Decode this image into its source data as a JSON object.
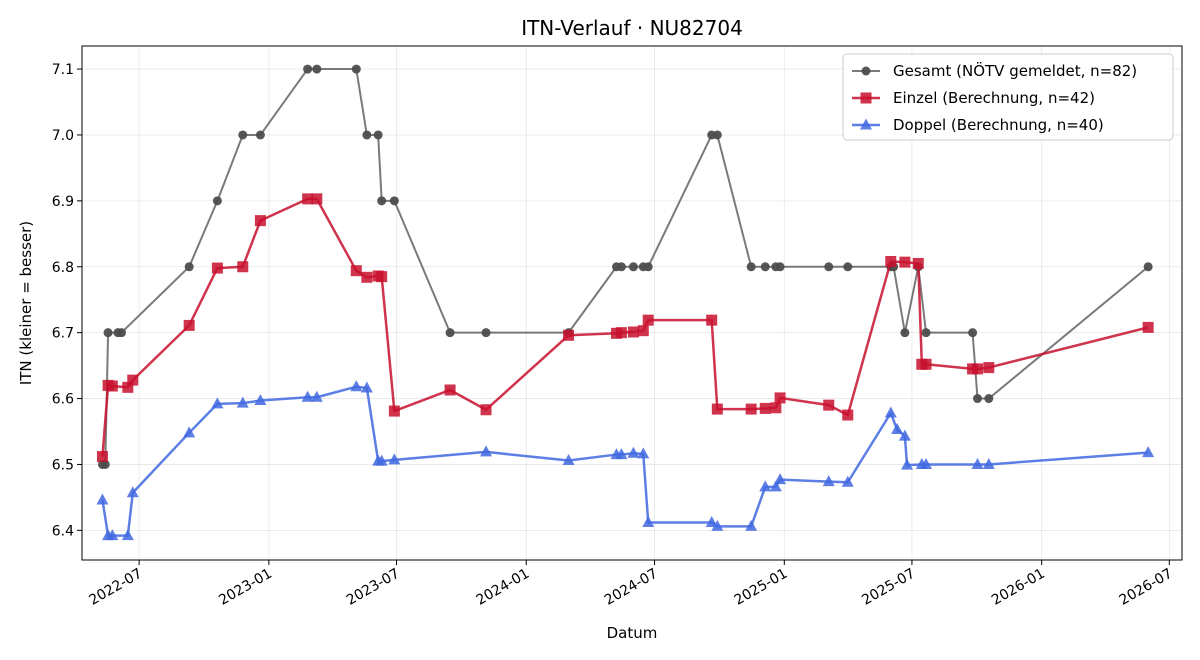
{
  "chart_data": {
    "type": "line",
    "title": "ITN-Verlauf · NU82704",
    "xlabel": "Datum",
    "ylabel": "ITN  (kleiner = besser)",
    "xlim": [
      "2022-04-11",
      "2026-07-19"
    ],
    "ylim": [
      6.355,
      7.135
    ],
    "grid": true,
    "legend_position": "top-right",
    "x_ticks": [
      {
        "date": "2022-07-01",
        "label": "2022-07"
      },
      {
        "date": "2023-01-01",
        "label": "2023-01"
      },
      {
        "date": "2023-07-01",
        "label": "2023-07"
      },
      {
        "date": "2024-01-01",
        "label": "2024-01"
      },
      {
        "date": "2024-07-01",
        "label": "2024-07"
      },
      {
        "date": "2025-01-01",
        "label": "2025-01"
      },
      {
        "date": "2025-07-01",
        "label": "2025-07"
      },
      {
        "date": "2026-01-01",
        "label": "2026-01"
      },
      {
        "date": "2026-07-01",
        "label": "2026-07"
      }
    ],
    "y_ticks": [
      6.4,
      6.5,
      6.6,
      6.7,
      6.8,
      6.9,
      7.0,
      7.1
    ],
    "y_tick_labels": [
      "6.4",
      "6.5",
      "6.6",
      "6.7",
      "6.8",
      "6.9",
      "7.0",
      "7.1"
    ],
    "series": [
      {
        "name": "Gesamt (NÖTV gemeldet, n=82)",
        "color": "#4d4d4d",
        "marker": "circle",
        "points": [
          [
            "2022-05-10",
            6.5
          ],
          [
            "2022-05-14",
            6.5
          ],
          [
            "2022-05-18",
            6.7
          ],
          [
            "2022-06-01",
            6.7
          ],
          [
            "2022-06-06",
            6.7
          ],
          [
            "2022-09-10",
            6.8
          ],
          [
            "2022-10-20",
            6.9
          ],
          [
            "2022-11-25",
            7.0
          ],
          [
            "2022-12-20",
            7.0
          ],
          [
            "2023-02-25",
            7.1
          ],
          [
            "2023-03-10",
            7.1
          ],
          [
            "2023-05-05",
            7.1
          ],
          [
            "2023-05-20",
            7.0
          ],
          [
            "2023-06-05",
            7.0
          ],
          [
            "2023-06-10",
            6.9
          ],
          [
            "2023-06-28",
            6.9
          ],
          [
            "2023-09-15",
            6.7
          ],
          [
            "2023-11-05",
            6.7
          ],
          [
            "2024-03-01",
            6.7
          ],
          [
            "2024-05-08",
            6.8
          ],
          [
            "2024-05-15",
            6.8
          ],
          [
            "2024-06-01",
            6.8
          ],
          [
            "2024-06-15",
            6.8
          ],
          [
            "2024-06-22",
            6.8
          ],
          [
            "2024-09-20",
            7.0
          ],
          [
            "2024-09-28",
            7.0
          ],
          [
            "2024-11-15",
            6.8
          ],
          [
            "2024-12-05",
            6.8
          ],
          [
            "2024-12-20",
            6.8
          ],
          [
            "2024-12-26",
            6.8
          ],
          [
            "2025-03-05",
            6.8
          ],
          [
            "2025-04-01",
            6.8
          ],
          [
            "2025-06-01",
            6.8
          ],
          [
            "2025-06-05",
            6.8
          ],
          [
            "2025-06-21",
            6.7
          ],
          [
            "2025-07-10",
            6.8
          ],
          [
            "2025-07-21",
            6.7
          ],
          [
            "2025-09-25",
            6.7
          ],
          [
            "2025-10-02",
            6.6
          ],
          [
            "2025-10-18",
            6.6
          ],
          [
            "2026-06-01",
            6.8
          ]
        ]
      },
      {
        "name": "Einzel (Berechnung, n=42)",
        "color": "#c8102e",
        "marker": "square",
        "points": [
          [
            "2022-05-10",
            6.512
          ],
          [
            "2022-05-18",
            6.62
          ],
          [
            "2022-05-24",
            6.619
          ],
          [
            "2022-06-15",
            6.617
          ],
          [
            "2022-06-22",
            6.628
          ],
          [
            "2022-09-10",
            6.711
          ],
          [
            "2022-10-20",
            6.798
          ],
          [
            "2022-11-25",
            6.8
          ],
          [
            "2022-12-20",
            6.87
          ],
          [
            "2023-02-25",
            6.903
          ],
          [
            "2023-03-10",
            6.903
          ],
          [
            "2023-05-05",
            6.794
          ],
          [
            "2023-05-20",
            6.784
          ],
          [
            "2023-06-05",
            6.786
          ],
          [
            "2023-06-10",
            6.785
          ],
          [
            "2023-06-28",
            6.581
          ],
          [
            "2023-09-15",
            6.613
          ],
          [
            "2023-11-05",
            6.583
          ],
          [
            "2024-03-01",
            6.696
          ],
          [
            "2024-05-08",
            6.699
          ],
          [
            "2024-05-15",
            6.7
          ],
          [
            "2024-06-01",
            6.701
          ],
          [
            "2024-06-15",
            6.703
          ],
          [
            "2024-06-22",
            6.719
          ],
          [
            "2024-09-20",
            6.719
          ],
          [
            "2024-09-28",
            6.584
          ],
          [
            "2024-11-15",
            6.584
          ],
          [
            "2024-12-05",
            6.585
          ],
          [
            "2024-12-20",
            6.586
          ],
          [
            "2024-12-26",
            6.601
          ],
          [
            "2025-03-05",
            6.59
          ],
          [
            "2025-04-01",
            6.575
          ],
          [
            "2025-06-01",
            6.808
          ],
          [
            "2025-06-21",
            6.807
          ],
          [
            "2025-07-10",
            6.805
          ],
          [
            "2025-07-15",
            6.652
          ],
          [
            "2025-07-21",
            6.652
          ],
          [
            "2025-09-25",
            6.645
          ],
          [
            "2025-10-02",
            6.645
          ],
          [
            "2025-10-18",
            6.647
          ],
          [
            "2026-06-01",
            6.708
          ]
        ]
      },
      {
        "name": "Doppel (Berechnung, n=40)",
        "color": "#4169e1",
        "marker": "triangle",
        "points": [
          [
            "2022-05-10",
            6.446
          ],
          [
            "2022-05-18",
            6.392
          ],
          [
            "2022-05-24",
            6.392
          ],
          [
            "2022-06-15",
            6.392
          ],
          [
            "2022-06-22",
            6.457
          ],
          [
            "2022-09-10",
            6.548
          ],
          [
            "2022-10-20",
            6.592
          ],
          [
            "2022-11-25",
            6.593
          ],
          [
            "2022-12-20",
            6.597
          ],
          [
            "2023-02-25",
            6.602
          ],
          [
            "2023-03-10",
            6.602
          ],
          [
            "2023-05-05",
            6.618
          ],
          [
            "2023-05-20",
            6.616
          ],
          [
            "2023-06-05",
            6.505
          ],
          [
            "2023-06-10",
            6.505
          ],
          [
            "2023-06-28",
            6.507
          ],
          [
            "2023-11-05",
            6.519
          ],
          [
            "2024-03-01",
            6.506
          ],
          [
            "2024-05-08",
            6.515
          ],
          [
            "2024-05-15",
            6.515
          ],
          [
            "2024-06-01",
            6.517
          ],
          [
            "2024-06-15",
            6.516
          ],
          [
            "2024-06-22",
            6.412
          ],
          [
            "2024-09-20",
            6.412
          ],
          [
            "2024-09-28",
            6.406
          ],
          [
            "2024-11-15",
            6.406
          ],
          [
            "2024-12-05",
            6.466
          ],
          [
            "2024-12-20",
            6.466
          ],
          [
            "2024-12-26",
            6.477
          ],
          [
            "2025-03-05",
            6.474
          ],
          [
            "2025-04-01",
            6.473
          ],
          [
            "2025-06-01",
            6.578
          ],
          [
            "2025-06-10",
            6.553
          ],
          [
            "2025-06-21",
            6.543
          ],
          [
            "2025-06-24",
            6.499
          ],
          [
            "2025-07-15",
            6.5
          ],
          [
            "2025-07-21",
            6.5
          ],
          [
            "2025-10-02",
            6.5
          ],
          [
            "2025-10-18",
            6.5
          ],
          [
            "2026-06-01",
            6.518
          ]
        ]
      }
    ]
  }
}
